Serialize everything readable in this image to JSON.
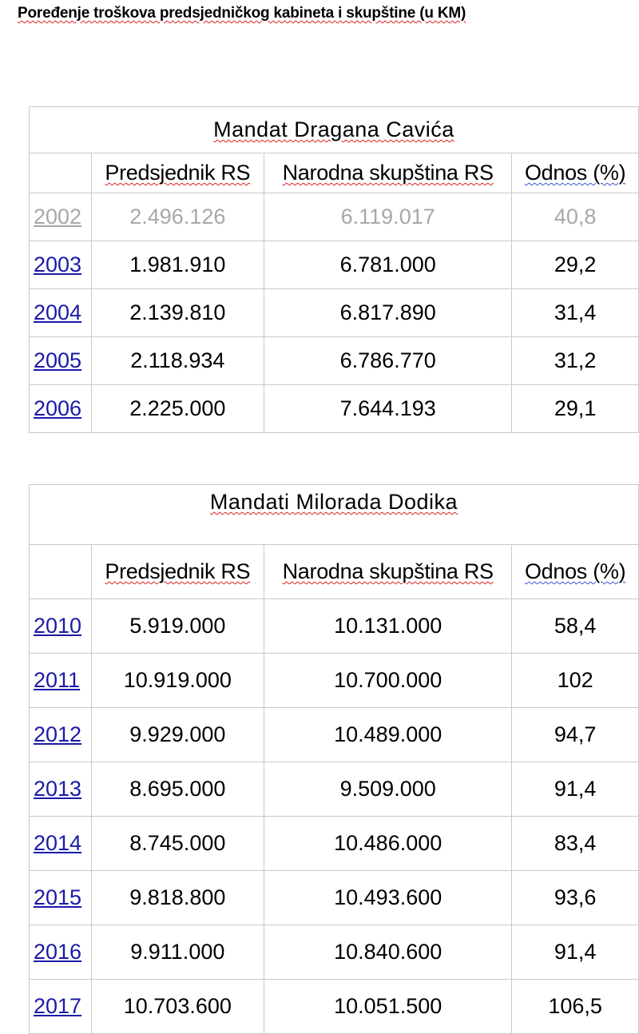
{
  "title": "Poređenje troškova predsjedničkog kabineta i skupštine (u KM)",
  "table1": {
    "caption": "Mandat Dragana Cavića",
    "headers": [
      "",
      "Predsjednik RS",
      "Narodna skupština RS",
      "Odnos  (%)"
    ],
    "rows": [
      {
        "year": "2002",
        "pres": "2.496.126",
        "skup": "6.119.017",
        "odnos": "40,8",
        "faded": true
      },
      {
        "year": "2003",
        "pres": "1.981.910",
        "skup": "6.781.000",
        "odnos": "29,2"
      },
      {
        "year": "2004",
        "pres": "2.139.810",
        "skup": "6.817.890",
        "odnos": "31,4"
      },
      {
        "year": "2005",
        "pres": "2.118.934",
        "skup": "6.786.770",
        "odnos": "31,2"
      },
      {
        "year": "2006",
        "pres": "2.225.000",
        "skup": "7.644.193",
        "odnos": "29,1"
      }
    ]
  },
  "table2": {
    "caption": "Mandati Milorada Dodika",
    "headers": [
      "",
      "Predsjednik RS",
      "Narodna skupština RS",
      "Odnos  (%)"
    ],
    "rows": [
      {
        "year": "2010",
        "pres": "5.919.000",
        "skup": "10.131.000",
        "odnos": "58,4"
      },
      {
        "year": "2011",
        "pres": "10.919.000",
        "skup": "10.700.000",
        "odnos": "102"
      },
      {
        "year": "2012",
        "pres": "9.929.000",
        "skup": "10.489.000",
        "odnos": "94,7"
      },
      {
        "year": "2013",
        "pres": "8.695.000",
        "skup": "9.509.000",
        "odnos": "91,4"
      },
      {
        "year": "2014",
        "pres": "8.745.000",
        "skup": "10.486.000",
        "odnos": "83,4"
      },
      {
        "year": "2015",
        "pres": "9.818.800",
        "skup": "10.493.600",
        "odnos": "93,6"
      },
      {
        "year": "2016",
        "pres": "9.911.000",
        "skup": "10.840.600",
        "odnos": "91,4"
      },
      {
        "year": "2017",
        "pres": "10.703.600",
        "skup": "10.051.500",
        "odnos": "106,5"
      }
    ]
  },
  "colors": {
    "link": "#1a1aa8",
    "faded": "#a8a8a8",
    "border": "#c8c8c8",
    "spellcheck": "#e02020",
    "grammar": "#3a55d0"
  }
}
